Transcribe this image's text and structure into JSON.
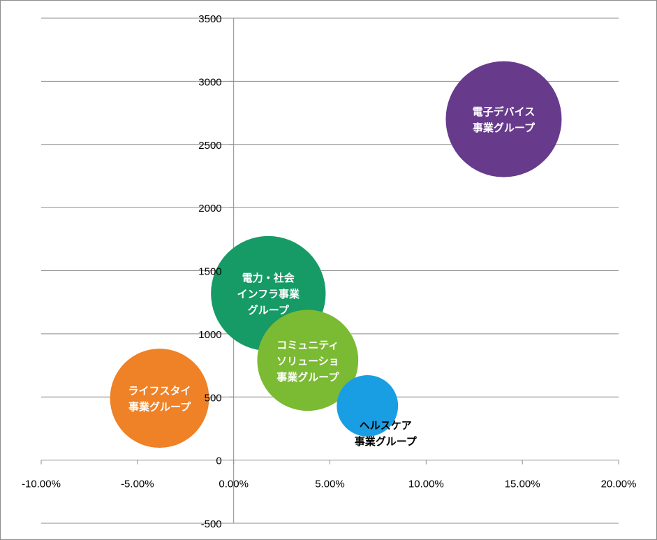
{
  "chart_data": {
    "type": "bubble",
    "title": "",
    "xlabel": "",
    "ylabel": "",
    "xlim": [
      -0.1,
      0.2
    ],
    "ylim": [
      -500,
      3500
    ],
    "x_ticks": [
      -0.1,
      -0.05,
      0.0,
      0.05,
      0.1,
      0.15,
      0.2
    ],
    "x_tick_labels": [
      "-10.00%",
      "-5.00%",
      "0.00%",
      "5.00%",
      "10.00%",
      "15.00%",
      "20.00%"
    ],
    "y_ticks": [
      -500,
      0,
      500,
      1000,
      1500,
      2000,
      2500,
      3000,
      3500
    ],
    "y_tick_labels": [
      "-500",
      "0",
      "500",
      "1000",
      "1500",
      "2000",
      "2500",
      "3000",
      "3500"
    ],
    "grid": "horizontal",
    "legend": "none",
    "series": [
      {
        "lines": [
          "電子デバイス",
          "事業グループ"
        ],
        "x": 0.1403,
        "y": 2700,
        "size": 100,
        "color": "#673a8c",
        "label_color": "#ffffff"
      },
      {
        "lines": [
          "電力・社会",
          "インフラ事業",
          "グループ"
        ],
        "x": 0.018,
        "y": 1320,
        "size": 98,
        "color": "#169a66",
        "label_color": "#ffffff"
      },
      {
        "lines": [
          "コミュニティ",
          "ソリューショ",
          "事業グループ"
        ],
        "x": 0.0385,
        "y": 790,
        "size": 76,
        "color": "#7bba33",
        "label_color": "#ffffff"
      },
      {
        "lines": [
          "ライフスタイ",
          "事業グループ"
        ],
        "x": -0.0385,
        "y": 490,
        "size": 73,
        "color": "#ef8127",
        "label_color": "#ffffff"
      },
      {
        "lines": [
          "ヘルスケア",
          "事業グループ"
        ],
        "x": 0.0695,
        "y": 430,
        "size": 28,
        "color": "#199ee4",
        "label_color": "#000000"
      }
    ]
  }
}
